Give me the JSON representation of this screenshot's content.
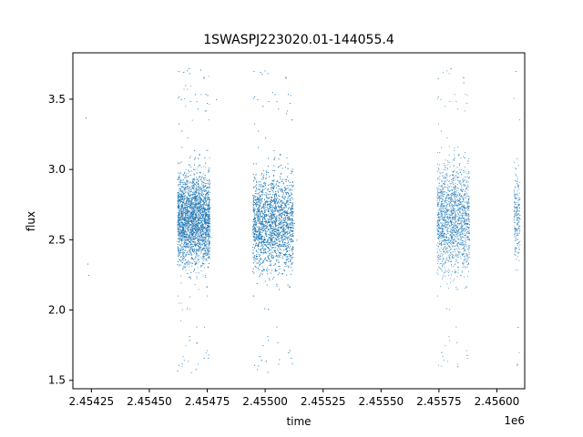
{
  "chart_data": {
    "type": "scatter",
    "title": "1SWASPJ223020.01-144055.4",
    "xlabel": "time",
    "ylabel": "flux",
    "x_offset_label": "1e6",
    "xlim": [
      2454170,
      2456120
    ],
    "ylim": [
      1.44,
      3.83
    ],
    "x_ticks": [
      2454250,
      2454500,
      2454750,
      2455000,
      2455250,
      2455500,
      2455750,
      2456000
    ],
    "x_tick_labels": [
      "2.45425",
      "2.45450",
      "2.45475",
      "2.45500",
      "2.45525",
      "2.45550",
      "2.45575",
      "2.45600"
    ],
    "y_ticks": [
      1.5,
      2.0,
      2.5,
      3.0,
      3.5
    ],
    "y_tick_labels": [
      "1.5",
      "2.0",
      "2.5",
      "3.0",
      "3.5"
    ],
    "grid": false,
    "marker_color": "#1f77b4",
    "series": [
      {
        "points": [
          [
            2454225,
            3.37
          ],
          [
            2454233,
            2.33
          ],
          [
            2454236,
            2.25
          ],
          [
            2454620,
            1.57
          ],
          [
            2454625,
            3.7
          ],
          [
            2454640,
            1.62
          ],
          [
            2454655,
            3.6
          ],
          [
            2454670,
            3.72
          ],
          [
            2454700,
            1.58
          ],
          [
            2454720,
            3.71
          ],
          [
            2454735,
            1.66
          ],
          [
            2454760,
            2.73
          ],
          [
            2454765,
            2.52
          ],
          [
            2454788,
            3.5
          ],
          [
            2454950,
            3.7
          ],
          [
            2454965,
            1.58
          ],
          [
            2454985,
            3.68
          ],
          [
            2455010,
            1.56
          ],
          [
            2455030,
            3.55
          ],
          [
            2455060,
            1.65
          ],
          [
            2455090,
            3.4
          ],
          [
            2455115,
            1.62
          ],
          [
            2455125,
            2.62
          ],
          [
            2455135,
            2.5
          ],
          [
            2455745,
            3.65
          ],
          [
            2455760,
            1.7
          ],
          [
            2455800,
            3.72
          ],
          [
            2455830,
            1.6
          ],
          [
            2455855,
            3.62
          ],
          [
            2455870,
            1.68
          ],
          [
            2455880,
            2.5
          ],
          [
            2456080,
            3.7
          ],
          [
            2456085,
            1.61
          ],
          [
            2456090,
            1.88
          ],
          [
            2456095,
            2.55
          ]
        ],
        "clusters": [
          {
            "x_range": [
              2454620,
              2454760
            ],
            "center": 2.65,
            "spread": 0.16,
            "count": 3800
          },
          {
            "x_range": [
              2454945,
              2455120
            ],
            "center": 2.62,
            "spread": 0.17,
            "count": 3600
          },
          {
            "x_range": [
              2455740,
              2455880
            ],
            "center": 2.65,
            "spread": 0.19,
            "count": 1700
          },
          {
            "x_range": [
              2456072,
              2456098
            ],
            "center": 2.68,
            "spread": 0.15,
            "count": 220
          }
        ]
      }
    ]
  }
}
